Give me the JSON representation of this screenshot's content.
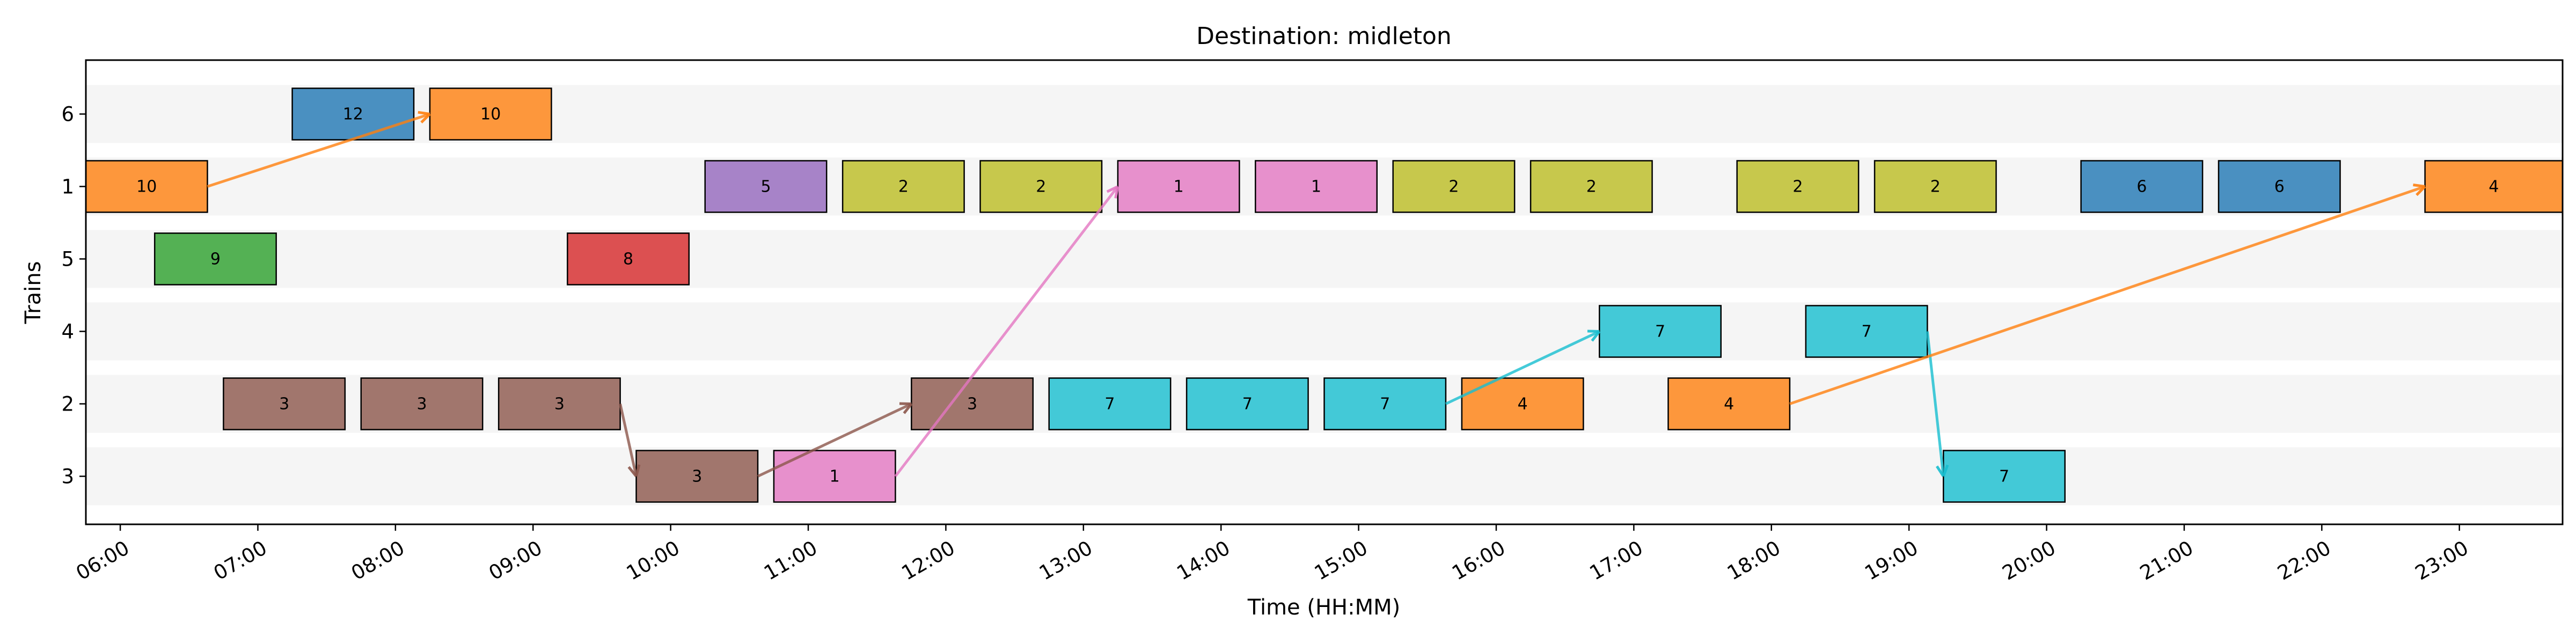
{
  "chart_data": {
    "type": "gantt",
    "title": "Destination: midleton",
    "xlabel": "Time (HH:MM)",
    "ylabel": "Trains",
    "xlim": [
      "05:45",
      "23:45"
    ],
    "x_ticks": [
      "06:00",
      "07:00",
      "08:00",
      "09:00",
      "10:00",
      "11:00",
      "12:00",
      "13:00",
      "14:00",
      "15:00",
      "16:00",
      "17:00",
      "18:00",
      "19:00",
      "20:00",
      "21:00",
      "22:00",
      "23:00"
    ],
    "y_categories": [
      "6",
      "1",
      "5",
      "4",
      "2",
      "3"
    ],
    "colors": {
      "1": "#e377c2",
      "2": "#bcbd22",
      "3": "#8c564b",
      "4": "#ff7f0e",
      "5": "#9467bd",
      "6": "#1f77b4",
      "7": "#17becf",
      "8": "#d62728",
      "9": "#2ca02c",
      "10": "#ff7f0e",
      "12": "#1f77b4"
    },
    "tasks": [
      {
        "train": "1",
        "label": "10",
        "start": "05:45",
        "end": "06:38"
      },
      {
        "train": "6",
        "label": "12",
        "start": "07:15",
        "end": "08:08"
      },
      {
        "train": "6",
        "label": "10",
        "start": "08:15",
        "end": "09:08"
      },
      {
        "train": "5",
        "label": "9",
        "start": "06:15",
        "end": "07:08"
      },
      {
        "train": "5",
        "label": "8",
        "start": "09:15",
        "end": "10:08"
      },
      {
        "train": "2",
        "label": "3",
        "start": "06:45",
        "end": "07:38"
      },
      {
        "train": "2",
        "label": "3",
        "start": "07:45",
        "end": "08:38"
      },
      {
        "train": "2",
        "label": "3",
        "start": "08:45",
        "end": "09:38"
      },
      {
        "train": "3",
        "label": "3",
        "start": "09:45",
        "end": "10:38"
      },
      {
        "train": "3",
        "label": "1",
        "start": "10:45",
        "end": "11:38"
      },
      {
        "train": "1",
        "label": "5",
        "start": "10:15",
        "end": "11:08"
      },
      {
        "train": "1",
        "label": "2",
        "start": "11:15",
        "end": "12:08"
      },
      {
        "train": "1",
        "label": "2",
        "start": "12:15",
        "end": "13:08"
      },
      {
        "train": "1",
        "label": "1",
        "start": "13:15",
        "end": "14:08"
      },
      {
        "train": "1",
        "label": "1",
        "start": "14:15",
        "end": "15:08"
      },
      {
        "train": "1",
        "label": "2",
        "start": "15:15",
        "end": "16:08"
      },
      {
        "train": "1",
        "label": "2",
        "start": "16:15",
        "end": "17:08"
      },
      {
        "train": "1",
        "label": "2",
        "start": "17:45",
        "end": "18:38"
      },
      {
        "train": "1",
        "label": "2",
        "start": "18:45",
        "end": "19:38"
      },
      {
        "train": "1",
        "label": "6",
        "start": "20:15",
        "end": "21:08"
      },
      {
        "train": "1",
        "label": "6",
        "start": "21:15",
        "end": "22:08"
      },
      {
        "train": "1",
        "label": "4",
        "start": "22:45",
        "end": "23:45"
      },
      {
        "train": "2",
        "label": "3",
        "start": "11:45",
        "end": "12:38"
      },
      {
        "train": "2",
        "label": "7",
        "start": "12:45",
        "end": "13:38"
      },
      {
        "train": "2",
        "label": "7",
        "start": "13:45",
        "end": "14:38"
      },
      {
        "train": "2",
        "label": "7",
        "start": "14:45",
        "end": "15:38"
      },
      {
        "train": "2",
        "label": "4",
        "start": "15:45",
        "end": "16:38"
      },
      {
        "train": "2",
        "label": "4",
        "start": "17:15",
        "end": "18:08"
      },
      {
        "train": "4",
        "label": "7",
        "start": "16:45",
        "end": "17:38"
      },
      {
        "train": "4",
        "label": "7",
        "start": "18:15",
        "end": "19:08"
      },
      {
        "train": "3",
        "label": "7",
        "start": "19:15",
        "end": "20:08"
      }
    ],
    "transfers": [
      {
        "from_train": "1",
        "from_time": "06:38",
        "to_train": "6",
        "to_time": "08:15",
        "color": "#ff7f0e"
      },
      {
        "from_train": "2",
        "from_time": "09:38",
        "to_train": "3",
        "to_time": "09:45",
        "color": "#8c564b"
      },
      {
        "from_train": "3",
        "from_time": "10:38",
        "to_train": "2",
        "to_time": "11:45",
        "color": "#8c564b"
      },
      {
        "from_train": "3",
        "from_time": "11:38",
        "to_train": "1",
        "to_time": "13:15",
        "color": "#e377c2"
      },
      {
        "from_train": "2",
        "from_time": "15:38",
        "to_train": "4",
        "to_time": "16:45",
        "color": "#17becf"
      },
      {
        "from_train": "4",
        "from_time": "19:08",
        "to_train": "3",
        "to_time": "19:15",
        "color": "#17becf"
      },
      {
        "from_train": "2",
        "from_time": "18:08",
        "to_train": "1",
        "to_time": "22:45",
        "color": "#ff7f0e"
      }
    ]
  }
}
